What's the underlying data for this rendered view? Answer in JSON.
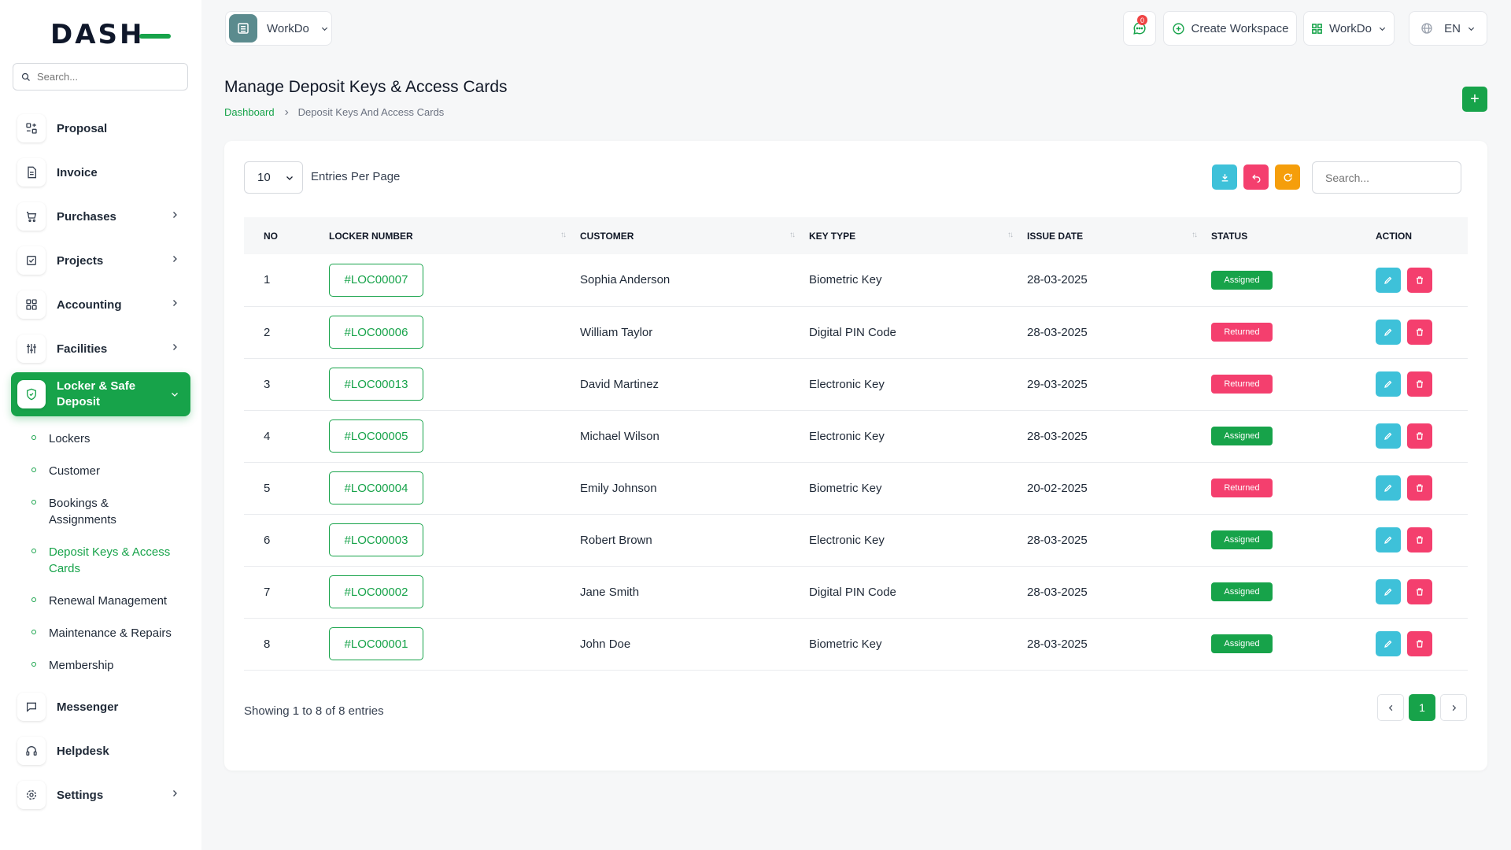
{
  "app": {
    "logo_text": "DASH"
  },
  "sidebar": {
    "search_placeholder": "Search...",
    "items": [
      {
        "label": "Proposal",
        "icon": "proposal-icon",
        "has_children": false
      },
      {
        "label": "Invoice",
        "icon": "invoice-icon",
        "has_children": false
      },
      {
        "label": "Purchases",
        "icon": "cart-icon",
        "has_children": true
      },
      {
        "label": "Projects",
        "icon": "checklist-icon",
        "has_children": true
      },
      {
        "label": "Accounting",
        "icon": "grid-icon",
        "has_children": true
      },
      {
        "label": "Facilities",
        "icon": "sliders-icon",
        "has_children": true
      },
      {
        "label": "Locker & Safe Deposit",
        "icon": "shield-icon",
        "has_children": true,
        "active": true
      },
      {
        "label": "Messenger",
        "icon": "chat-icon",
        "has_children": false
      },
      {
        "label": "Helpdesk",
        "icon": "headset-icon",
        "has_children": false
      },
      {
        "label": "Settings",
        "icon": "gear-icon",
        "has_children": true
      }
    ],
    "submenu": [
      {
        "label": "Lockers"
      },
      {
        "label": "Customer"
      },
      {
        "label": "Bookings & Assignments"
      },
      {
        "label": "Deposit Keys & Access Cards",
        "active": true
      },
      {
        "label": "Renewal Management"
      },
      {
        "label": "Maintenance & Repairs"
      },
      {
        "label": "Membership"
      }
    ]
  },
  "header": {
    "workspace_name": "WorkDo",
    "notification_count": "0",
    "create_workspace_label": "Create Workspace",
    "workspace_menu_label": "WorkDo",
    "language": "EN"
  },
  "page": {
    "title": "Manage Deposit Keys & Access Cards",
    "breadcrumb": [
      "Dashboard",
      "Deposit Keys And Access Cards"
    ],
    "add_label": "+"
  },
  "table": {
    "per_page": "10",
    "per_page_label": "Entries Per Page",
    "search_placeholder": "Search...",
    "columns": [
      "NO",
      "LOCKER NUMBER",
      "CUSTOMER",
      "KEY TYPE",
      "ISSUE DATE",
      "STATUS",
      "ACTION"
    ],
    "rows": [
      {
        "no": "1",
        "locker": "#LOC00007",
        "customer": "Sophia Anderson",
        "key_type": "Biometric Key",
        "issue_date": "28-03-2025",
        "status": "Assigned"
      },
      {
        "no": "2",
        "locker": "#LOC00006",
        "customer": "William Taylor",
        "key_type": "Digital PIN Code",
        "issue_date": "28-03-2025",
        "status": "Returned"
      },
      {
        "no": "3",
        "locker": "#LOC00013",
        "customer": "David Martinez",
        "key_type": "Electronic Key",
        "issue_date": "29-03-2025",
        "status": "Returned"
      },
      {
        "no": "4",
        "locker": "#LOC00005",
        "customer": "Michael Wilson",
        "key_type": "Electronic Key",
        "issue_date": "28-03-2025",
        "status": "Assigned"
      },
      {
        "no": "5",
        "locker": "#LOC00004",
        "customer": "Emily Johnson",
        "key_type": "Biometric Key",
        "issue_date": "20-02-2025",
        "status": "Returned"
      },
      {
        "no": "6",
        "locker": "#LOC00003",
        "customer": "Robert Brown",
        "key_type": "Electronic Key",
        "issue_date": "28-03-2025",
        "status": "Assigned"
      },
      {
        "no": "7",
        "locker": "#LOC00002",
        "customer": "Jane Smith",
        "key_type": "Digital PIN Code",
        "issue_date": "28-03-2025",
        "status": "Assigned"
      },
      {
        "no": "8",
        "locker": "#LOC00001",
        "customer": "John Doe",
        "key_type": "Biometric Key",
        "issue_date": "28-03-2025",
        "status": "Assigned"
      }
    ],
    "showing_text": "Showing 1 to 8 of 8 entries",
    "current_page": "1"
  },
  "colors": {
    "accent": "#17a34a",
    "danger": "#f43f6e",
    "info": "#3ec1d9",
    "warning": "#f59e0b"
  }
}
